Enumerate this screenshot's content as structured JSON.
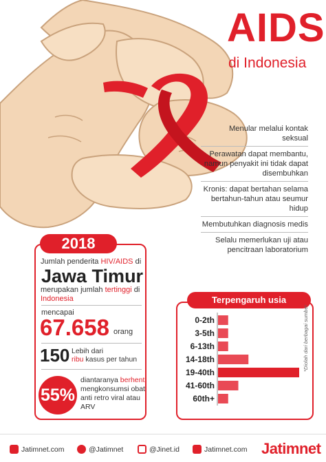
{
  "header": {
    "title": "AIDS",
    "subtitle": "di Indonesia"
  },
  "facts": [
    "Menular melalui kontak seksual",
    "Perawatan dapat membantu, namun penyakit ini tidak dapat disembuhkan",
    "Kronis: dapat bertahan selama bertahun-tahun atau seumur hidup",
    "Membutuhkan diagnosis medis",
    "Selalu memerlukan uji atau pencitraan laboratorium"
  ],
  "card": {
    "year": "2018",
    "intro_a": "Jumlah penderita ",
    "intro_b": "HIV/AIDS",
    "intro_c": " di",
    "province": "Jawa Timur",
    "desc_a": "merupakan jumlah ",
    "desc_b": "tertinggi",
    "desc_c": " di ",
    "desc_d": "Indonesia",
    "reach_label": "mencapai",
    "count": "67.658",
    "count_unit": "orang",
    "yearly_num": "150",
    "yearly_a": "Lebih dari",
    "yearly_b": "ribu",
    "yearly_c": " kasus per tahun",
    "pct": "55%",
    "pct_a": "diantaranya ",
    "pct_b": "berhenti",
    "pct_c": " mengkonsumsi ",
    "pct_d": "obat anti retro viral atau ARV"
  },
  "chart_data": {
    "type": "bar",
    "title": "Terpengaruh usia",
    "categories": [
      "0-2th",
      "3-5th",
      "6-13th",
      "14-18th",
      "19-40th",
      "41-60th",
      "60th+"
    ],
    "values": [
      1,
      1,
      1,
      3,
      8,
      2,
      1
    ],
    "note": "*Diolah dari berbagai sumber",
    "bar_color": "#e94a55",
    "highlight_color": "#e0202a"
  },
  "footer": {
    "web": "Jatimnet.com",
    "twitter": "@Jatimnet",
    "instagram": "@Jinet.id",
    "facebook": "Jatimnet.com",
    "brand": "Jatimnet"
  },
  "colors": {
    "accent": "#e0202a",
    "skin": "#f3d6b6",
    "skin_line": "#c9a27c"
  }
}
